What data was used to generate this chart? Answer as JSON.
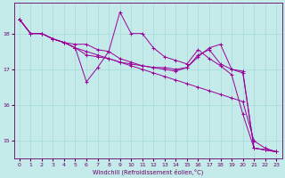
{
  "xlabel": "Windchill (Refroidissement éolien,°C)",
  "background_color": "#c5eaea",
  "line_color": "#990099",
  "grid_color": "#aadddd",
  "ylim": [
    14.5,
    18.85
  ],
  "xlim": [
    -0.5,
    23.5
  ],
  "yticks": [
    15,
    16,
    17,
    18
  ],
  "xticks": [
    0,
    1,
    2,
    3,
    4,
    5,
    6,
    7,
    8,
    9,
    10,
    11,
    12,
    13,
    14,
    15,
    16,
    17,
    18,
    19,
    20,
    21,
    22,
    23
  ],
  "lines": [
    [
      18.4,
      18.0,
      18.0,
      17.85,
      17.75,
      17.7,
      17.7,
      17.55,
      17.5,
      18.6,
      18.0,
      18.0,
      17.6,
      17.35,
      17.25,
      17.15,
      17.55,
      17.3,
      17.1,
      16.85,
      15.75,
      14.8,
      14.75,
      14.7
    ],
    [
      18.4,
      18.0,
      18.0,
      17.85,
      17.75,
      17.6,
      16.65,
      17.05,
      17.5,
      17.3,
      17.2,
      17.1,
      17.05,
      17.0,
      16.95,
      17.05,
      17.35,
      17.6,
      17.7,
      17.0,
      16.9,
      14.8,
      14.75,
      14.7
    ],
    [
      18.4,
      18.0,
      18.0,
      17.85,
      17.75,
      17.6,
      17.5,
      17.4,
      17.3,
      17.2,
      17.1,
      17.0,
      16.9,
      16.8,
      16.7,
      16.6,
      16.5,
      16.4,
      16.3,
      16.2,
      16.1,
      15.0,
      14.8,
      14.7
    ],
    [
      18.4,
      18.0,
      18.0,
      17.85,
      17.75,
      17.6,
      17.4,
      17.35,
      17.3,
      17.2,
      17.15,
      17.1,
      17.05,
      17.05,
      17.0,
      17.05,
      17.4,
      17.55,
      17.15,
      17.0,
      16.95,
      14.8,
      14.75,
      14.7
    ]
  ]
}
